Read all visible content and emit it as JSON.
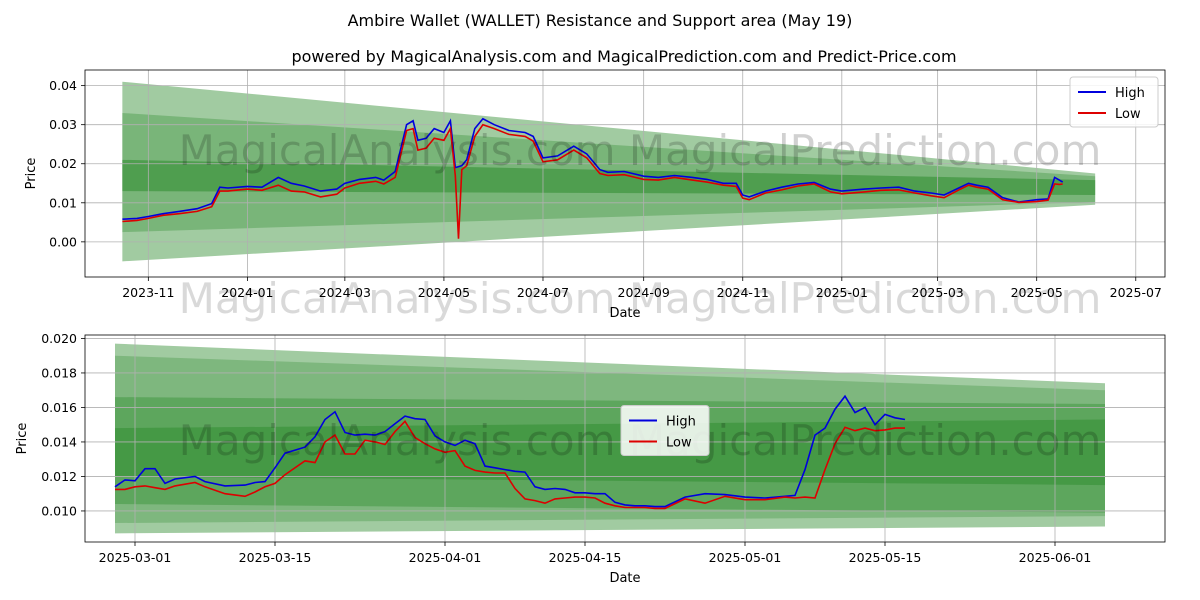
{
  "title": "Ambire Wallet (WALLET) Resistance and Support area (May 19)",
  "subtitle": "powered by MagicalAnalysis.com and MagicalPrediction.com and Predict-Price.com",
  "watermark": "MagicalAnalysis.com    MagicalPrediction.com",
  "colors": {
    "high": "#0000dd",
    "low": "#dd0000",
    "band": "#2e8b2e"
  },
  "chart_data": [
    {
      "type": "line",
      "xlabel": "Date",
      "ylabel": "Price",
      "xlim": [
        "2023-09-23",
        "2025-07-19"
      ],
      "ylim": [
        -0.009,
        0.044
      ],
      "xticks": [
        {
          "date": "2023-11-01",
          "label": "2023-11"
        },
        {
          "date": "2024-01-01",
          "label": "2024-01"
        },
        {
          "date": "2024-03-01",
          "label": "2024-03"
        },
        {
          "date": "2024-05-01",
          "label": "2024-05"
        },
        {
          "date": "2024-07-01",
          "label": "2024-07"
        },
        {
          "date": "2024-09-01",
          "label": "2024-09"
        },
        {
          "date": "2024-11-01",
          "label": "2024-11"
        },
        {
          "date": "2025-01-01",
          "label": "2025-01"
        },
        {
          "date": "2025-03-01",
          "label": "2025-03"
        },
        {
          "date": "2025-05-01",
          "label": "2025-05"
        },
        {
          "date": "2025-07-01",
          "label": "2025-07"
        }
      ],
      "yticks": [
        0.0,
        0.01,
        0.02,
        0.03,
        0.04
      ],
      "ytick_labels": [
        "0.00",
        "0.01",
        "0.02",
        "0.03",
        "0.04"
      ],
      "grid": true,
      "legend": {
        "placement": "top-right",
        "entries": [
          "High",
          "Low"
        ]
      },
      "bands": [
        {
          "x": [
            "2023-10-16",
            "2025-06-06"
          ],
          "upper": [
            0.041,
            0.0175
          ],
          "lower": [
            -0.005,
            0.0095
          ],
          "opacity": 0.45
        },
        {
          "x": [
            "2023-10-16",
            "2025-06-06"
          ],
          "upper": [
            0.033,
            0.0168
          ],
          "lower": [
            0.0025,
            0.0102
          ],
          "opacity": 0.35
        },
        {
          "x": [
            "2023-10-16",
            "2025-06-06"
          ],
          "upper": [
            0.021,
            0.0158
          ],
          "lower": [
            0.013,
            0.012
          ],
          "opacity": 0.55
        }
      ],
      "series": [
        {
          "name": "High",
          "x": [
            "2023-10-16",
            "2023-10-25",
            "2023-11-01",
            "2023-11-10",
            "2023-11-20",
            "2023-12-01",
            "2023-12-10",
            "2023-12-15",
            "2023-12-20",
            "2024-01-01",
            "2024-01-10",
            "2024-01-20",
            "2024-01-28",
            "2024-02-05",
            "2024-02-15",
            "2024-02-25",
            "2024-03-01",
            "2024-03-10",
            "2024-03-20",
            "2024-03-25",
            "2024-04-01",
            "2024-04-08",
            "2024-04-12",
            "2024-04-15",
            "2024-04-20",
            "2024-04-25",
            "2024-05-01",
            "2024-05-05",
            "2024-05-08",
            "2024-05-12",
            "2024-05-15",
            "2024-05-20",
            "2024-05-25",
            "2024-06-01",
            "2024-06-10",
            "2024-06-20",
            "2024-06-25",
            "2024-07-01",
            "2024-07-10",
            "2024-07-20",
            "2024-07-28",
            "2024-08-05",
            "2024-08-10",
            "2024-08-20",
            "2024-09-01",
            "2024-09-10",
            "2024-09-20",
            "2024-10-01",
            "2024-10-10",
            "2024-10-20",
            "2024-10-28",
            "2024-11-01",
            "2024-11-05",
            "2024-11-15",
            "2024-11-25",
            "2024-12-05",
            "2024-12-15",
            "2024-12-25",
            "2025-01-01",
            "2025-01-15",
            "2025-01-25",
            "2025-02-05",
            "2025-02-15",
            "2025-02-25",
            "2025-03-05",
            "2025-03-15",
            "2025-03-20",
            "2025-03-25",
            "2025-04-01",
            "2025-04-10",
            "2025-04-20",
            "2025-05-01",
            "2025-05-08",
            "2025-05-12",
            "2025-05-15",
            "2025-05-17"
          ],
          "values": [
            0.0058,
            0.006,
            0.0065,
            0.0072,
            0.0078,
            0.0085,
            0.0098,
            0.014,
            0.0138,
            0.0142,
            0.014,
            0.0165,
            0.015,
            0.0143,
            0.013,
            0.0135,
            0.015,
            0.016,
            0.0165,
            0.0158,
            0.018,
            0.03,
            0.031,
            0.026,
            0.0265,
            0.029,
            0.028,
            0.031,
            0.019,
            0.0195,
            0.021,
            0.029,
            0.0315,
            0.03,
            0.0285,
            0.028,
            0.027,
            0.0215,
            0.022,
            0.0245,
            0.0225,
            0.0185,
            0.0178,
            0.018,
            0.0168,
            0.0165,
            0.017,
            0.0165,
            0.016,
            0.015,
            0.015,
            0.012,
            0.0115,
            0.013,
            0.014,
            0.0148,
            0.0152,
            0.0135,
            0.013,
            0.0135,
            0.0138,
            0.014,
            0.013,
            0.0125,
            0.012,
            0.014,
            0.015,
            0.0145,
            0.014,
            0.0113,
            0.0102,
            0.0108,
            0.011,
            0.0165,
            0.0158,
            0.0153
          ]
        },
        {
          "name": "Low",
          "x": [
            "2023-10-16",
            "2023-10-25",
            "2023-11-01",
            "2023-11-10",
            "2023-11-20",
            "2023-12-01",
            "2023-12-10",
            "2023-12-15",
            "2023-12-20",
            "2024-01-01",
            "2024-01-10",
            "2024-01-20",
            "2024-01-28",
            "2024-02-05",
            "2024-02-15",
            "2024-02-25",
            "2024-03-01",
            "2024-03-10",
            "2024-03-20",
            "2024-03-25",
            "2024-04-01",
            "2024-04-08",
            "2024-04-12",
            "2024-04-15",
            "2024-04-20",
            "2024-04-25",
            "2024-05-01",
            "2024-05-05",
            "2024-05-08",
            "2024-05-10",
            "2024-05-12",
            "2024-05-15",
            "2024-05-20",
            "2024-05-25",
            "2024-06-01",
            "2024-06-10",
            "2024-06-20",
            "2024-06-25",
            "2024-07-01",
            "2024-07-10",
            "2024-07-20",
            "2024-07-28",
            "2024-08-05",
            "2024-08-10",
            "2024-08-20",
            "2024-09-01",
            "2024-09-10",
            "2024-09-20",
            "2024-10-01",
            "2024-10-10",
            "2024-10-20",
            "2024-10-28",
            "2024-11-01",
            "2024-11-05",
            "2024-11-15",
            "2024-11-25",
            "2024-12-05",
            "2024-12-15",
            "2024-12-25",
            "2025-01-01",
            "2025-01-15",
            "2025-01-25",
            "2025-02-05",
            "2025-02-15",
            "2025-02-25",
            "2025-03-05",
            "2025-03-15",
            "2025-03-20",
            "2025-03-25",
            "2025-04-01",
            "2025-04-10",
            "2025-04-20",
            "2025-05-01",
            "2025-05-08",
            "2025-05-12",
            "2025-05-15",
            "2025-05-17"
          ],
          "values": [
            0.0052,
            0.0055,
            0.006,
            0.0068,
            0.0072,
            0.0078,
            0.009,
            0.013,
            0.013,
            0.0135,
            0.0132,
            0.0145,
            0.013,
            0.0128,
            0.0115,
            0.0122,
            0.0138,
            0.015,
            0.0155,
            0.0148,
            0.0165,
            0.0285,
            0.029,
            0.0235,
            0.024,
            0.0265,
            0.026,
            0.029,
            0.017,
            0.0008,
            0.0185,
            0.0195,
            0.027,
            0.03,
            0.029,
            0.0275,
            0.027,
            0.0258,
            0.0205,
            0.021,
            0.0235,
            0.0215,
            0.0175,
            0.017,
            0.0172,
            0.016,
            0.0158,
            0.0165,
            0.0158,
            0.0153,
            0.0145,
            0.0142,
            0.0112,
            0.0108,
            0.0125,
            0.0133,
            0.0143,
            0.0148,
            0.0128,
            0.0123,
            0.0128,
            0.0132,
            0.0133,
            0.0125,
            0.0118,
            0.0113,
            0.0135,
            0.0145,
            0.014,
            0.0135,
            0.0108,
            0.0101,
            0.0103,
            0.0107,
            0.0148,
            0.0147,
            0.0148
          ]
        }
      ]
    },
    {
      "type": "line",
      "xlabel": "Date",
      "ylabel": "Price",
      "xlim": [
        "2025-02-24",
        "2025-06-12"
      ],
      "ylim": [
        0.0082,
        0.0202
      ],
      "xticks": [
        {
          "date": "2025-03-01",
          "label": "2025-03-01"
        },
        {
          "date": "2025-03-15",
          "label": "2025-03-15"
        },
        {
          "date": "2025-04-01",
          "label": "2025-04-01"
        },
        {
          "date": "2025-04-15",
          "label": "2025-04-15"
        },
        {
          "date": "2025-05-01",
          "label": "2025-05-01"
        },
        {
          "date": "2025-05-15",
          "label": "2025-05-15"
        },
        {
          "date": "2025-06-01",
          "label": "2025-06-01"
        }
      ],
      "yticks": [
        0.01,
        0.012,
        0.014,
        0.016,
        0.018,
        0.02
      ],
      "ytick_labels": [
        "0.010",
        "0.012",
        "0.014",
        "0.016",
        "0.018",
        "0.020"
      ],
      "grid": true,
      "legend": {
        "placement": "center",
        "entries": [
          "High",
          "Low"
        ]
      },
      "bands": [
        {
          "x": [
            "2025-02-27",
            "2025-06-06"
          ],
          "upper": [
            0.0197,
            0.0174
          ],
          "lower": [
            0.0087,
            0.0091
          ],
          "opacity": 0.45
        },
        {
          "x": [
            "2025-02-27",
            "2025-06-06"
          ],
          "upper": [
            0.019,
            0.017
          ],
          "lower": [
            0.0093,
            0.0097
          ],
          "opacity": 0.3
        },
        {
          "x": [
            "2025-02-27",
            "2025-06-06"
          ],
          "upper": [
            0.0166,
            0.0162
          ],
          "lower": [
            0.0104,
            0.0099
          ],
          "opacity": 0.4
        },
        {
          "x": [
            "2025-02-27",
            "2025-06-06"
          ],
          "upper": [
            0.0148,
            0.0153
          ],
          "lower": [
            0.012,
            0.0115
          ],
          "opacity": 0.5
        }
      ],
      "series": [
        {
          "name": "High",
          "x": [
            "2025-02-27",
            "2025-02-28",
            "2025-03-01",
            "2025-03-02",
            "2025-03-03",
            "2025-03-04",
            "2025-03-05",
            "2025-03-07",
            "2025-03-08",
            "2025-03-10",
            "2025-03-12",
            "2025-03-13",
            "2025-03-14",
            "2025-03-15",
            "2025-03-16",
            "2025-03-18",
            "2025-03-19",
            "2025-03-20",
            "2025-03-21",
            "2025-03-22",
            "2025-03-23",
            "2025-03-24",
            "2025-03-25",
            "2025-03-26",
            "2025-03-27",
            "2025-03-28",
            "2025-03-29",
            "2025-03-30",
            "2025-03-31",
            "2025-04-01",
            "2025-04-02",
            "2025-04-03",
            "2025-04-04",
            "2025-04-05",
            "2025-04-06",
            "2025-04-07",
            "2025-04-08",
            "2025-04-09",
            "2025-04-10",
            "2025-04-11",
            "2025-04-12",
            "2025-04-13",
            "2025-04-14",
            "2025-04-15",
            "2025-04-16",
            "2025-04-17",
            "2025-04-18",
            "2025-04-19",
            "2025-04-20",
            "2025-04-21",
            "2025-04-22",
            "2025-04-23",
            "2025-04-25",
            "2025-04-27",
            "2025-04-29",
            "2025-05-01",
            "2025-05-03",
            "2025-05-05",
            "2025-05-06",
            "2025-05-07",
            "2025-05-08",
            "2025-05-09",
            "2025-05-10",
            "2025-05-11",
            "2025-05-12",
            "2025-05-13",
            "2025-05-14",
            "2025-05-15",
            "2025-05-16",
            "2025-05-17"
          ],
          "values": [
            0.0114,
            0.0118,
            0.01175,
            0.01245,
            0.01245,
            0.0116,
            0.01185,
            0.012,
            0.0117,
            0.01145,
            0.0115,
            0.01165,
            0.0117,
            0.0125,
            0.01335,
            0.0137,
            0.0143,
            0.0153,
            0.01575,
            0.01455,
            0.0144,
            0.01445,
            0.0144,
            0.0146,
            0.01505,
            0.0155,
            0.01535,
            0.0153,
            0.01435,
            0.014,
            0.0138,
            0.0141,
            0.0139,
            0.0126,
            0.0125,
            0.0124,
            0.0123,
            0.01225,
            0.0114,
            0.01125,
            0.0113,
            0.01125,
            0.01105,
            0.01105,
            0.011,
            0.011,
            0.0105,
            0.01035,
            0.0103,
            0.0103,
            0.01025,
            0.01025,
            0.0108,
            0.011,
            0.01095,
            0.0108,
            0.01075,
            0.01085,
            0.0109,
            0.0124,
            0.0144,
            0.0148,
            0.0159,
            0.01665,
            0.0157,
            0.016,
            0.015,
            0.0156,
            0.0154,
            0.0153
          ]
        },
        {
          "name": "Low",
          "x": [
            "2025-02-27",
            "2025-02-28",
            "2025-03-01",
            "2025-03-02",
            "2025-03-03",
            "2025-03-04",
            "2025-03-05",
            "2025-03-07",
            "2025-03-08",
            "2025-03-10",
            "2025-03-12",
            "2025-03-13",
            "2025-03-14",
            "2025-03-15",
            "2025-03-16",
            "2025-03-18",
            "2025-03-19",
            "2025-03-20",
            "2025-03-21",
            "2025-03-22",
            "2025-03-23",
            "2025-03-24",
            "2025-03-25",
            "2025-03-26",
            "2025-03-27",
            "2025-03-28",
            "2025-03-29",
            "2025-03-30",
            "2025-03-31",
            "2025-04-01",
            "2025-04-02",
            "2025-04-03",
            "2025-04-04",
            "2025-04-05",
            "2025-04-06",
            "2025-04-07",
            "2025-04-08",
            "2025-04-09",
            "2025-04-10",
            "2025-04-11",
            "2025-04-12",
            "2025-04-13",
            "2025-04-14",
            "2025-04-15",
            "2025-04-16",
            "2025-04-17",
            "2025-04-18",
            "2025-04-19",
            "2025-04-20",
            "2025-04-21",
            "2025-04-22",
            "2025-04-23",
            "2025-04-25",
            "2025-04-27",
            "2025-04-29",
            "2025-05-01",
            "2025-05-03",
            "2025-05-05",
            "2025-05-06",
            "2025-05-07",
            "2025-05-08",
            "2025-05-09",
            "2025-05-10",
            "2025-05-11",
            "2025-05-12",
            "2025-05-13",
            "2025-05-14",
            "2025-05-15",
            "2025-05-16",
            "2025-05-17"
          ],
          "values": [
            0.01125,
            0.01125,
            0.0114,
            0.01145,
            0.01135,
            0.01125,
            0.01145,
            0.01165,
            0.0114,
            0.011,
            0.01085,
            0.0111,
            0.0114,
            0.0116,
            0.0121,
            0.0129,
            0.0128,
            0.014,
            0.0144,
            0.0133,
            0.0133,
            0.0141,
            0.014,
            0.01385,
            0.0146,
            0.0152,
            0.01425,
            0.0139,
            0.0136,
            0.0134,
            0.0135,
            0.0126,
            0.01235,
            0.01225,
            0.0122,
            0.0122,
            0.0113,
            0.0107,
            0.0106,
            0.01045,
            0.0107,
            0.01075,
            0.0108,
            0.0108,
            0.01075,
            0.01045,
            0.0103,
            0.0102,
            0.0102,
            0.0102,
            0.01015,
            0.01015,
            0.0107,
            0.01045,
            0.01085,
            0.01065,
            0.01065,
            0.0108,
            0.01075,
            0.0108,
            0.01075,
            0.0124,
            0.0139,
            0.01485,
            0.01465,
            0.0148,
            0.01465,
            0.0147,
            0.0148,
            0.0148
          ]
        }
      ]
    }
  ]
}
